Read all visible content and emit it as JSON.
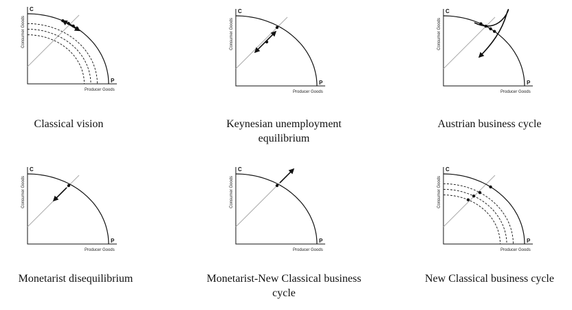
{
  "panels": [
    {
      "caption": [
        "Classical vision"
      ],
      "y_label": "Consumer Goods",
      "x_label": "Producer Goods",
      "c": "C",
      "p": "P"
    },
    {
      "caption": [
        "Keynesian unemployment",
        "equilibrium"
      ],
      "y_label": "Consumer Goods",
      "x_label": "Producer Goods",
      "c": "C",
      "p": "P"
    },
    {
      "caption": [
        "Austrian business cycle"
      ],
      "y_label": "Consumer Goods",
      "x_label": "Producer Goods",
      "c": "C",
      "p": "P"
    },
    {
      "caption": [
        "Monetarist disequilibrium"
      ],
      "y_label": "Consumer Goods",
      "x_label": "Producer Goods",
      "c": "C",
      "p": "P"
    },
    {
      "caption": [
        "Monetarist-New Classical business",
        "cycle"
      ],
      "y_label": "Consumer Goods",
      "x_label": "Producer Goods",
      "c": "C",
      "p": "P"
    },
    {
      "caption": [
        "New Classical business cycle"
      ],
      "y_label": "Consumer Goods",
      "x_label": "Producer Goods",
      "c": "C",
      "p": "P"
    }
  ]
}
